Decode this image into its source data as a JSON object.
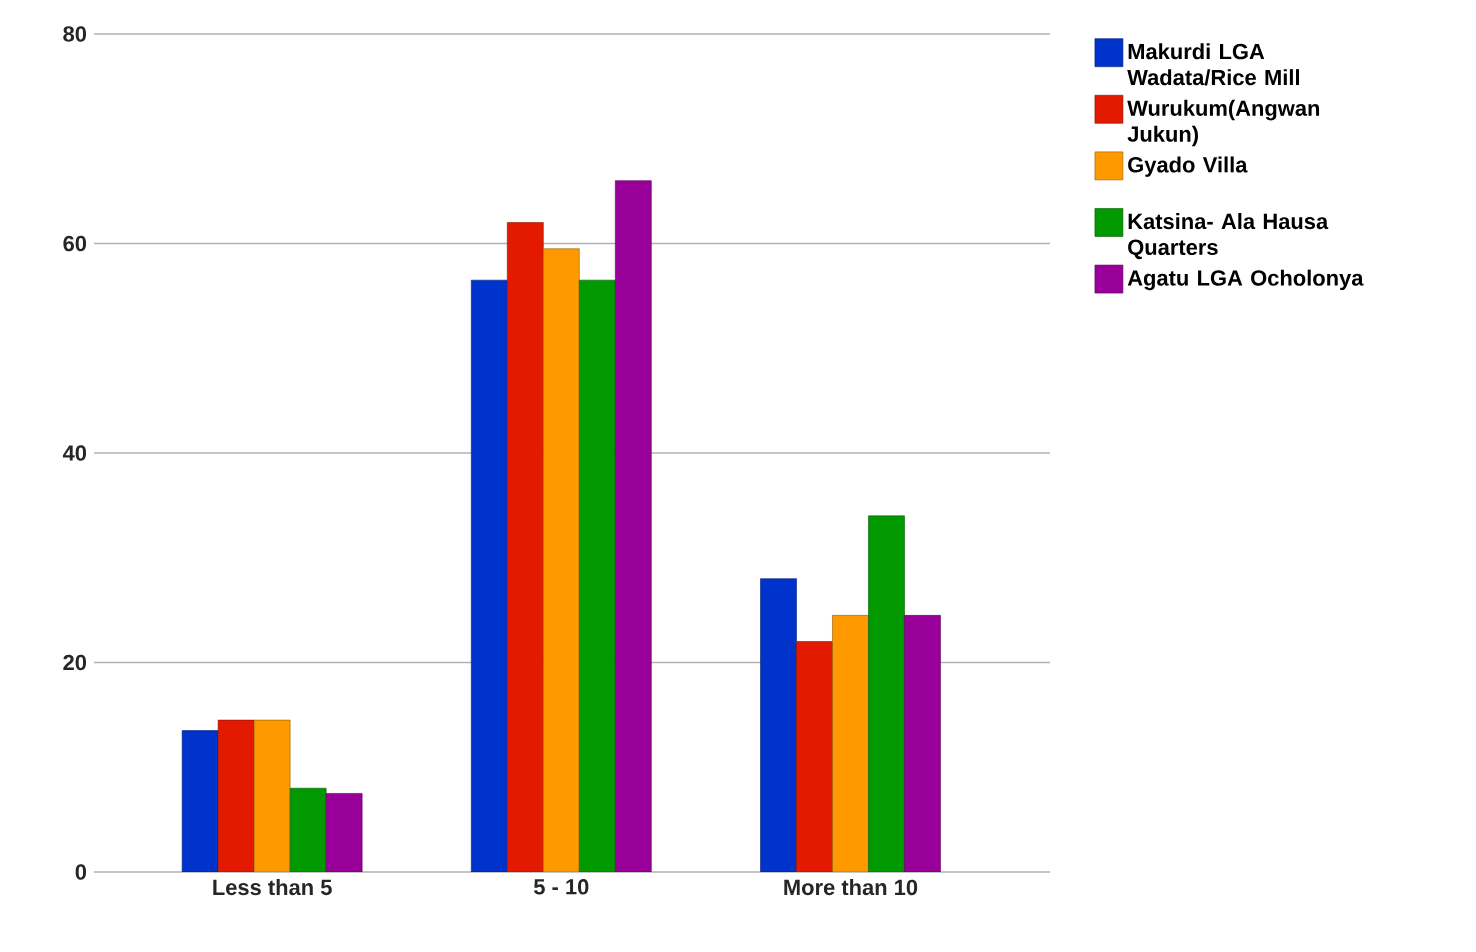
{
  "chart_data": {
    "type": "bar",
    "categories": [
      "Less than 5",
      "5 - 10",
      "More than 10"
    ],
    "series": [
      {
        "name": "Makurdi LGA Wadata/Rice Mill",
        "color": "#0033cc",
        "values": [
          13.5,
          56.5,
          28
        ]
      },
      {
        "name": "Wurukum(Angwan Jukun)",
        "color": "#e31a00",
        "values": [
          14.5,
          62,
          22
        ]
      },
      {
        "name": "Gyado Villa",
        "color": "#ff9900",
        "values": [
          14.5,
          59.5,
          24.5
        ]
      },
      {
        "name": "Katsina- Ala Hausa Quarters",
        "color": "#009900",
        "values": [
          8,
          56.5,
          34
        ]
      },
      {
        "name": "Agatu LGA Ocholonya",
        "color": "#990099",
        "values": [
          7.5,
          66,
          24.5
        ]
      }
    ],
    "ylim": [
      0,
      80
    ],
    "yticks": [
      0,
      20,
      40,
      60,
      80
    ],
    "grid": "y",
    "legend": "right"
  }
}
